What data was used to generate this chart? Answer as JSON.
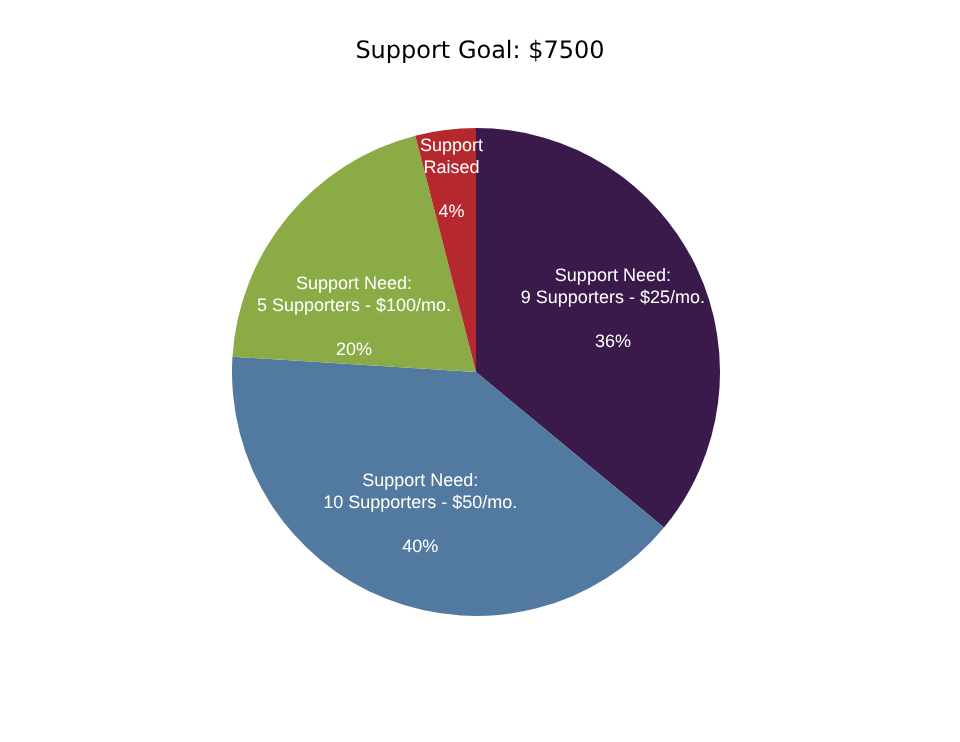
{
  "chart_data": {
    "type": "pie",
    "title": "Support Goal: $7500",
    "categories": [
      "Support Need:\n9 Supporters - $25/mo.",
      "Support Need:\n10 Supporters - $50/mo.",
      "Support Need:\n5 Supporters - $100/mo.",
      "Support\nRaised"
    ],
    "values": [
      36,
      40,
      20,
      4
    ],
    "value_labels": [
      "36%",
      "40%",
      "20%",
      "4%"
    ],
    "colors": [
      "#3a1a4a",
      "#52799f",
      "#8aab45",
      "#b5282e"
    ],
    "legend": false
  }
}
